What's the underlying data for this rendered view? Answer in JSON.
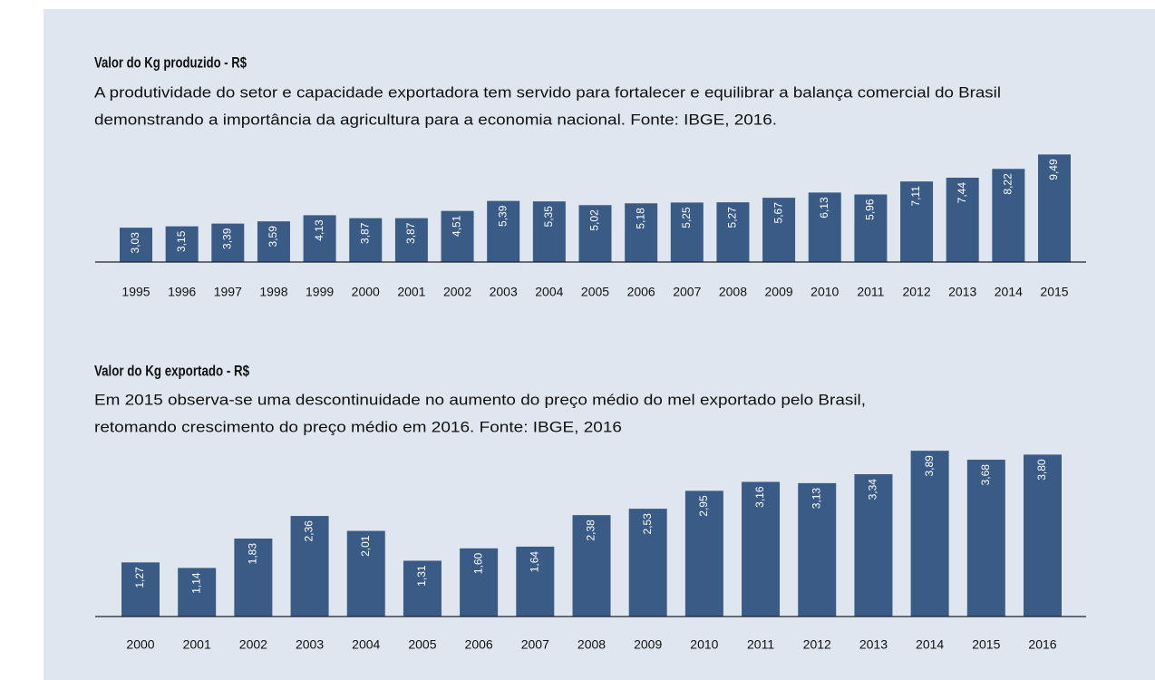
{
  "chart_data": [
    {
      "type": "bar",
      "title": "Valor do Kg produzido - R$",
      "subtitle": [
        "A produtividade do setor e capacidade exportadora tem servido para fortalecer e equilibrar a balança comercial do Brasil",
        "demonstrando a importância da agricultura para a economia nacional. Fonte: IBGE, 2016."
      ],
      "categories": [
        "1995",
        "1996",
        "1997",
        "1998",
        "1999",
        "2000",
        "2001",
        "2002",
        "2003",
        "2004",
        "2005",
        "2006",
        "2007",
        "2008",
        "2009",
        "2010",
        "2011",
        "2012",
        "2013",
        "2014",
        "2015"
      ],
      "values": [
        3.03,
        3.15,
        3.39,
        3.59,
        4.13,
        3.87,
        3.87,
        4.51,
        5.39,
        5.35,
        5.02,
        5.18,
        5.25,
        5.27,
        5.67,
        6.13,
        5.96,
        7.11,
        7.44,
        8.22,
        9.49
      ],
      "value_labels": [
        "3,03",
        "3,15",
        "3,39",
        "3,59",
        "4,13",
        "3,87",
        "3,87",
        "4,51",
        "5,39",
        "5,35",
        "5,02",
        "5,18",
        "5,25",
        "5,27",
        "5,67",
        "6,13",
        "5,96",
        "7,11",
        "7,44",
        "8,22",
        "9,49"
      ],
      "color": "#3b5b87"
    },
    {
      "type": "bar",
      "title": "Valor do Kg exportado - R$",
      "subtitle": [
        "Em 2015 observa-se uma descontinuidade no aumento do preço médio do mel exportado pelo Brasil,",
        "retomando crescimento do preço médio em 2016. Fonte: IBGE, 2016"
      ],
      "categories": [
        "2000",
        "2001",
        "2002",
        "2003",
        "2004",
        "2005",
        "2006",
        "2007",
        "2008",
        "2009",
        "2010",
        "2011",
        "2012",
        "2013",
        "2014",
        "2015",
        "2016"
      ],
      "values": [
        1.27,
        1.14,
        1.83,
        2.36,
        2.01,
        1.31,
        1.6,
        1.64,
        2.38,
        2.53,
        2.95,
        3.16,
        3.13,
        3.34,
        3.89,
        3.68,
        3.8
      ],
      "value_labels": [
        "1,27",
        "1,14",
        "1,83",
        "2,36",
        "2,01",
        "1,31",
        "1,60",
        "1,64",
        "2,38",
        "2,53",
        "2,95",
        "3,16",
        "3,13",
        "3,34",
        "3,89",
        "3,68",
        "3,80"
      ],
      "color": "#3b5b87"
    }
  ]
}
